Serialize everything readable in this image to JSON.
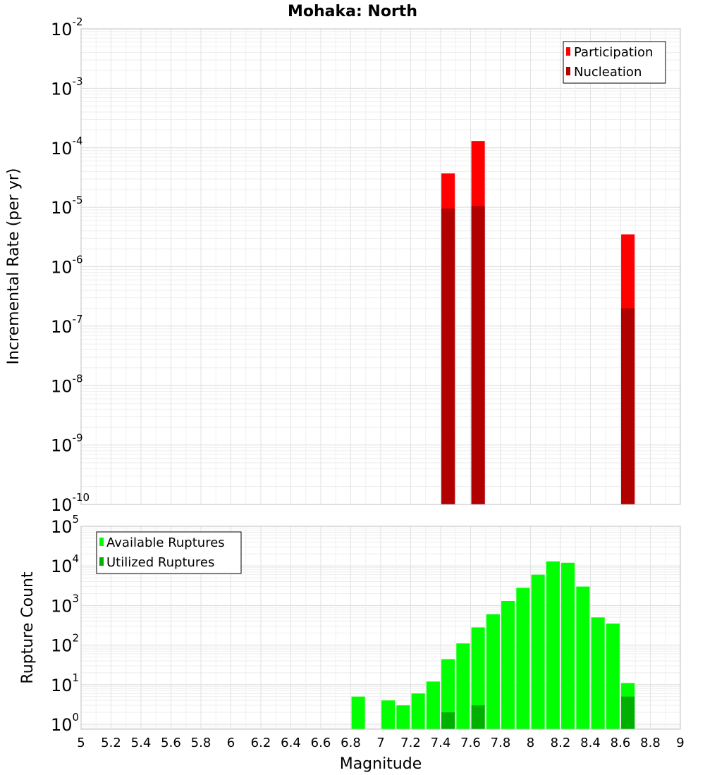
{
  "chart_data": [
    {
      "type": "bar",
      "title": "Mohaka: North",
      "xlabel": "",
      "ylabel": "Incremental Rate (per yr)",
      "xlim": [
        5,
        9
      ],
      "ylim": [
        1e-10,
        0.01
      ],
      "yscale": "log",
      "grid": true,
      "legend_position": "top-right",
      "bar_width": 0.09,
      "colors": {
        "Participation": "#ff0000",
        "Nucleation": "#b00000"
      },
      "series": [
        {
          "name": "Participation",
          "x": [
            7.45,
            7.65,
            8.65
          ],
          "values": [
            3.7e-05,
            0.00013,
            3.5e-06
          ]
        },
        {
          "name": "Nucleation",
          "x": [
            7.45,
            7.65,
            8.65
          ],
          "values": [
            9.5e-06,
            1.05e-05,
            2e-07
          ]
        }
      ],
      "yticks": [
        {
          "base": "10",
          "exp": "-2",
          "value": 0.01
        },
        {
          "base": "10",
          "exp": "-3",
          "value": 0.001
        },
        {
          "base": "10",
          "exp": "-4",
          "value": 0.0001
        },
        {
          "base": "10",
          "exp": "-5",
          "value": 1e-05
        },
        {
          "base": "10",
          "exp": "-6",
          "value": 1e-06
        },
        {
          "base": "10",
          "exp": "-7",
          "value": 1e-07
        },
        {
          "base": "10",
          "exp": "-8",
          "value": 1e-08
        },
        {
          "base": "10",
          "exp": "-9",
          "value": 1e-09
        },
        {
          "base": "10",
          "exp": "-10",
          "value": 1e-10
        }
      ]
    },
    {
      "type": "bar",
      "title": "",
      "xlabel": "Magnitude",
      "ylabel": "Rupture Count",
      "xlim": [
        5,
        9
      ],
      "ylim": [
        0.75,
        100000.0
      ],
      "yscale": "log",
      "grid": true,
      "legend_position": "top-left",
      "bar_width": 0.09,
      "colors": {
        "Available Ruptures": "#00ff00",
        "Utilized Ruptures": "#00b000"
      },
      "series": [
        {
          "name": "Available Ruptures",
          "x": [
            6.85,
            7.05,
            7.15,
            7.25,
            7.35,
            7.45,
            7.55,
            7.65,
            7.75,
            7.85,
            7.95,
            8.05,
            8.15,
            8.25,
            8.35,
            8.45,
            8.55,
            8.65
          ],
          "values": [
            5,
            4,
            3,
            6,
            12,
            44,
            110,
            280,
            600,
            1300,
            2800,
            6000,
            13000,
            12000,
            3000,
            500,
            350,
            11
          ]
        },
        {
          "name": "Utilized Ruptures",
          "x": [
            7.45,
            7.65,
            8.65
          ],
          "values": [
            2,
            3,
            5
          ]
        }
      ],
      "yticks": [
        {
          "base": "10",
          "exp": "5",
          "value": 100000.0
        },
        {
          "base": "10",
          "exp": "4",
          "value": 10000.0
        },
        {
          "base": "10",
          "exp": "3",
          "value": 1000.0
        },
        {
          "base": "10",
          "exp": "2",
          "value": 100.0
        },
        {
          "base": "10",
          "exp": "1",
          "value": 10.0
        },
        {
          "base": "10",
          "exp": "0",
          "value": 1
        }
      ],
      "xticks": [
        "5",
        "5.2",
        "5.4",
        "5.6",
        "5.8",
        "6",
        "6.2",
        "6.4",
        "6.6",
        "6.8",
        "7",
        "7.2",
        "7.4",
        "7.6",
        "7.8",
        "8",
        "8.2",
        "8.4",
        "8.6",
        "8.8",
        "9"
      ]
    }
  ]
}
